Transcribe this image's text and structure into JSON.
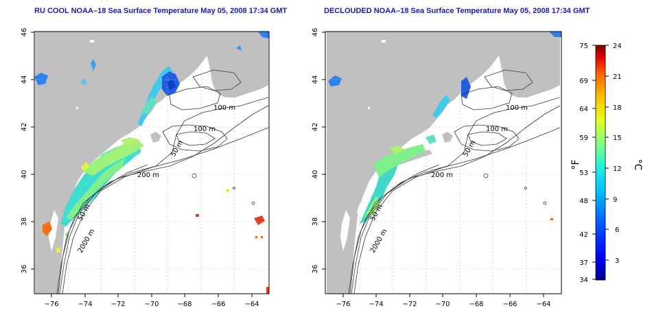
{
  "panels": [
    {
      "title": "RU COOL NOAA–18 Sea Surface Temperature May 05, 2008 17:34 GMT",
      "variant": "raw"
    },
    {
      "title": "DECLOUDED NOAA–18 Sea Surface Temperature May 05, 2008 17:34 GMT",
      "variant": "declouded"
    }
  ],
  "axes": {
    "x_ticks": [
      "−76",
      "−74",
      "−72",
      "−70",
      "−68",
      "−66",
      "−64"
    ],
    "x_values": [
      -76,
      -74,
      -72,
      -70,
      -68,
      -66,
      -64
    ],
    "y_ticks": [
      "36",
      "38",
      "40",
      "42",
      "44",
      "46"
    ],
    "y_values": [
      36,
      38,
      40,
      42,
      44,
      46
    ],
    "lon_range": [
      -77.2,
      -63.0
    ],
    "lat_range": [
      35.0,
      46.0
    ]
  },
  "contour_labels": [
    "100 m",
    "100 m",
    "50 m",
    "200 m",
    "50 m",
    "2000 m"
  ],
  "colorbar": {
    "fahrenheit_label": "°F",
    "celsius_label": "°C",
    "fahrenheit_ticks": [
      "75",
      "69",
      "64",
      "59",
      "53",
      "48",
      "42",
      "37",
      "34"
    ],
    "celsius_ticks": [
      "24",
      "21",
      "18",
      "15",
      "12",
      "9",
      "6",
      "3"
    ],
    "celsius_range": [
      1,
      24
    ],
    "gradient_colors": [
      "#00008f",
      "#0000ff",
      "#0060ff",
      "#00c0ff",
      "#20f0e0",
      "#80ff80",
      "#e0ff20",
      "#ffc000",
      "#ff6000",
      "#e00000",
      "#800000"
    ]
  },
  "colors": {
    "land": "#c0c0c0",
    "water": "#ffffff",
    "contour": "#333333",
    "grid": "#bbbbbb"
  }
}
